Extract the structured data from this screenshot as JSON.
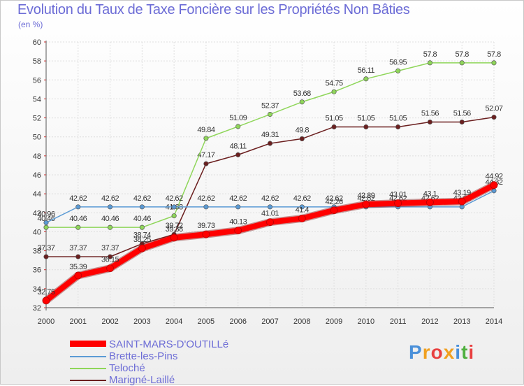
{
  "title": "Evolution du Taux de Taxe Foncière sur les Propriétés Non Bâties",
  "subtitle": "(en %)",
  "logo_text": "Proxiti",
  "chart_data": {
    "type": "line",
    "x": [
      2000,
      2001,
      2002,
      2003,
      2004,
      2005,
      2006,
      2007,
      2008,
      2009,
      2010,
      2011,
      2012,
      2013,
      2014
    ],
    "ylim": [
      32,
      60
    ],
    "yticks": [
      32,
      34,
      36,
      38,
      40,
      42,
      44,
      46,
      48,
      50,
      52,
      54,
      56,
      58,
      60
    ],
    "grid": true,
    "legend_position": "bottom-left",
    "series": [
      {
        "name": "Marigné-Laillé",
        "color": "#6b1f1f",
        "values": [
          37.37,
          37.37,
          37.37,
          38.74,
          39.72,
          47.17,
          48.11,
          49.31,
          49.8,
          51.05,
          51.05,
          51.05,
          51.56,
          51.56,
          52.07
        ],
        "labels": [
          "37.37",
          "37.37",
          "37.37",
          "38.74",
          "39.72",
          "47.17",
          "48.11",
          "49.31",
          "49.8",
          "51.05",
          "51.05",
          "51.05",
          "51.56",
          "51.56",
          "52.07"
        ]
      },
      {
        "name": "Teloché",
        "color": "#8fd65a",
        "values": [
          40.46,
          40.46,
          40.46,
          40.46,
          41.68,
          49.84,
          51.09,
          52.37,
          53.68,
          54.75,
          56.11,
          56.95,
          57.8,
          57.8,
          57.8
        ],
        "labels": [
          "40.46",
          "40.46",
          "40.46",
          "40.46",
          "41.68",
          "49.84",
          "51.09",
          "52.37",
          "53.68",
          "54.75",
          "56.11",
          "56.95",
          "57.8",
          "57.8",
          "57.8"
        ]
      },
      {
        "name": "Brette-les-Pins",
        "color": "#5b9bd5",
        "values": [
          40.96,
          42.62,
          42.62,
          42.62,
          42.62,
          42.62,
          42.62,
          42.62,
          42.62,
          42.62,
          42.62,
          42.62,
          42.62,
          42.62,
          44.32
        ],
        "labels": [
          "40.96",
          "42.62",
          "42.62",
          "42.62",
          "42.62",
          "42.62",
          "42.62",
          "42.62",
          "42.62",
          "42.62",
          "42.62",
          "42.62",
          "42.62",
          "42.62",
          "44.32"
        ]
      },
      {
        "name": "SAINT-MARS-D'OUTILLé",
        "color": "#ff0000",
        "values": [
          32.75,
          35.39,
          36.15,
          38.25,
          39.38,
          39.73,
          40.13,
          41.01,
          41.4,
          42.26,
          42.89,
          43.01,
          43.1,
          43.19,
          44.92
        ],
        "labels": [
          "32.75",
          "35.39",
          "36.15",
          "38.25",
          "39.38",
          "39.73",
          "40.13",
          "41.01",
          "41.4",
          "42.26",
          "42.89",
          "43.01",
          "43.1",
          "43.19",
          "44.92"
        ]
      }
    ]
  },
  "legend": {
    "items": [
      {
        "label": "SAINT-MARS-D'OUTILLé",
        "color": "#ff0000"
      },
      {
        "label": "Brette-les-Pins",
        "color": "#5b9bd5"
      },
      {
        "label": "Teloché",
        "color": "#8fd65a"
      },
      {
        "label": "Marigné-Laillé",
        "color": "#6b1f1f"
      }
    ]
  }
}
